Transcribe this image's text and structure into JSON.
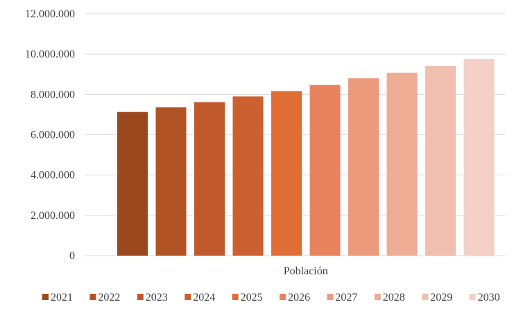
{
  "chart_data": {
    "type": "bar",
    "categories": [
      "Población"
    ],
    "series": [
      {
        "name": "2021",
        "values": [
          7130000
        ],
        "color": "#9c481e"
      },
      {
        "name": "2022",
        "values": [
          7360000
        ],
        "color": "#b15324"
      },
      {
        "name": "2023",
        "values": [
          7620000
        ],
        "color": "#c0592b"
      },
      {
        "name": "2024",
        "values": [
          7900000
        ],
        "color": "#cc612f"
      },
      {
        "name": "2025",
        "values": [
          8170000
        ],
        "color": "#e06e35"
      },
      {
        "name": "2026",
        "values": [
          8470000
        ],
        "color": "#e8845d"
      },
      {
        "name": "2027",
        "values": [
          8800000
        ],
        "color": "#eb9a7c"
      },
      {
        "name": "2028",
        "values": [
          9080000
        ],
        "color": "#eeac95"
      },
      {
        "name": "2029",
        "values": [
          9420000
        ],
        "color": "#f1bfb0"
      },
      {
        "name": "2030",
        "values": [
          9760000
        ],
        "color": "#f4d0c6"
      }
    ],
    "ylim": [
      0,
      12000000
    ],
    "yticks": [
      "0",
      "2.000.000",
      "4.000.000",
      "6.000.000",
      "8.000.000",
      "10.000.000",
      "12.000.000"
    ],
    "grid": true,
    "legend_position": "bottom"
  }
}
